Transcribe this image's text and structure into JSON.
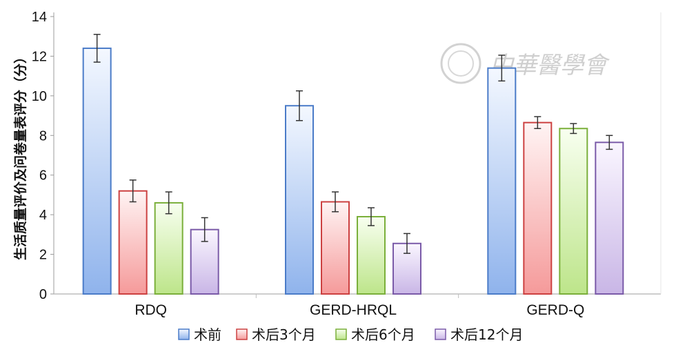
{
  "chart_data": {
    "type": "bar",
    "categories": [
      "RDQ",
      "GERD-HRQL",
      "GERD-Q"
    ],
    "series": [
      {
        "name": "术前",
        "values": [
          12.4,
          9.5,
          11.4
        ],
        "errors": [
          0.7,
          0.75,
          0.65
        ],
        "color": "#4a7bc8",
        "fill_top": "#f4f8ff",
        "fill_bottom": "#8fb3ec"
      },
      {
        "name": "术后3个月",
        "values": [
          5.2,
          4.65,
          8.65
        ],
        "errors": [
          0.55,
          0.5,
          0.3
        ],
        "color": "#cc4040",
        "fill_top": "#fff4f4",
        "fill_bottom": "#f59a9a"
      },
      {
        "name": "术后6个月",
        "values": [
          4.6,
          3.9,
          8.35
        ],
        "errors": [
          0.55,
          0.45,
          0.25
        ],
        "color": "#7aaf3a",
        "fill_top": "#f8fff0",
        "fill_bottom": "#bde58a"
      },
      {
        "name": "术后12个月",
        "values": [
          3.25,
          2.55,
          7.65
        ],
        "errors": [
          0.6,
          0.5,
          0.35
        ],
        "color": "#7a5aa8",
        "fill_top": "#faf6ff",
        "fill_bottom": "#c9b6e6"
      }
    ],
    "ylabel": "生活质量评价及问卷量表评分（分）",
    "xlabel": "",
    "ylim": [
      0,
      14
    ],
    "yticks": [
      0,
      2,
      4,
      6,
      8,
      10,
      12,
      14
    ],
    "grid": false,
    "legend_position": "bottom",
    "watermark": "中華醫學會"
  }
}
